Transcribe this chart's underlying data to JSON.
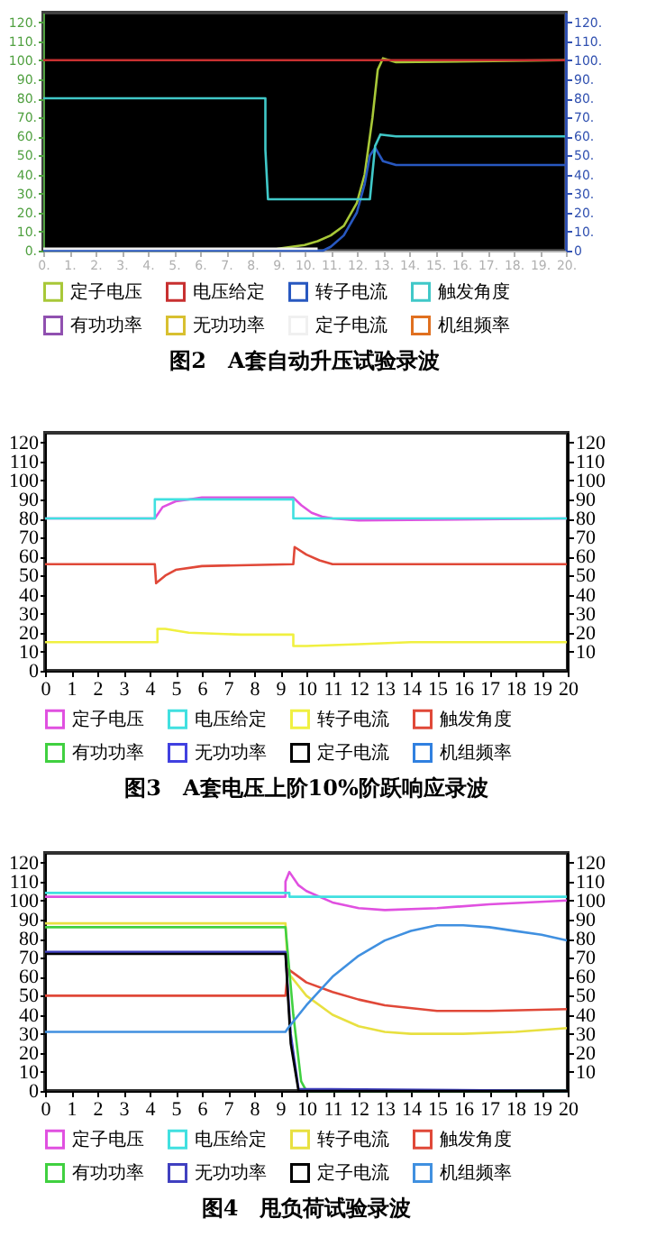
{
  "chart_data": [
    {
      "type": "line",
      "title": "图2　A套自动升压试验录波",
      "legend": "bottom",
      "marker": "none",
      "line_style": "solid",
      "grid": false,
      "xlim": [
        0,
        20
      ],
      "xticks": [
        {
          "value": 0,
          "label": "0."
        },
        {
          "value": 1,
          "label": "1."
        },
        {
          "value": 2,
          "label": "2."
        },
        {
          "value": 3,
          "label": "3."
        },
        {
          "value": 4,
          "label": "4."
        },
        {
          "value": 5,
          "label": "5."
        },
        {
          "value": 6,
          "label": "6."
        },
        {
          "value": 7,
          "label": "7."
        },
        {
          "value": 8,
          "label": "8."
        },
        {
          "value": 9,
          "label": "9."
        },
        {
          "value": 10,
          "label": "10."
        },
        {
          "value": 11,
          "label": "11."
        },
        {
          "value": 12,
          "label": "12."
        },
        {
          "value": 13,
          "label": "13."
        },
        {
          "value": 14,
          "label": "14."
        },
        {
          "value": 15,
          "label": "15."
        },
        {
          "value": 16,
          "label": "16."
        },
        {
          "value": 17,
          "label": "17."
        },
        {
          "value": 18,
          "label": "18."
        },
        {
          "value": 19,
          "label": "19."
        },
        {
          "value": 20,
          "label": "20."
        }
      ],
      "ylim": [
        0,
        125
      ],
      "yticks": [
        {
          "value": 0,
          "label": "0."
        },
        {
          "value": 10,
          "label": "10."
        },
        {
          "value": 20,
          "label": "20."
        },
        {
          "value": 30,
          "label": "30."
        },
        {
          "value": 40,
          "label": "40."
        },
        {
          "value": 50,
          "label": "50."
        },
        {
          "value": 60,
          "label": "60."
        },
        {
          "value": 70,
          "label": "70."
        },
        {
          "value": 80,
          "label": "80."
        },
        {
          "value": 90,
          "label": "90."
        },
        {
          "value": 100,
          "label": "100."
        },
        {
          "value": 110,
          "label": "110."
        },
        {
          "value": 120,
          "label": "120."
        }
      ],
      "y2lim": [
        0,
        125
      ],
      "y2ticks": [
        0,
        {
          "value": 10,
          "label": "10."
        },
        {
          "value": 20,
          "label": "20."
        },
        {
          "value": 30,
          "label": "30."
        },
        {
          "value": 40,
          "label": "40."
        },
        {
          "value": 50,
          "label": "50."
        },
        {
          "value": 60,
          "label": "60."
        },
        {
          "value": 70,
          "label": "70."
        },
        {
          "value": 80,
          "label": "80."
        },
        {
          "value": 90,
          "label": "90."
        },
        {
          "value": 100,
          "label": "100."
        },
        {
          "value": 110,
          "label": "110."
        },
        {
          "value": 120,
          "label": "120."
        }
      ],
      "series": [
        {
          "name": "定子电压",
          "color": "#a8c838",
          "x": [
            0,
            8.7,
            9,
            9.5,
            10,
            10.5,
            11,
            11.5,
            12,
            12.3,
            12.6,
            12.8,
            13,
            13.5,
            20
          ],
          "values": [
            0,
            0,
            1,
            2,
            3,
            5,
            8,
            13,
            25,
            40,
            70,
            95,
            101,
            99,
            100
          ]
        },
        {
          "name": "电压给定",
          "color": "#c83030",
          "x": [
            0,
            20
          ],
          "values": [
            100,
            100
          ]
        },
        {
          "name": "转子电流",
          "color": "#2858c0",
          "x": [
            0,
            10.7,
            11,
            11.5,
            12,
            12.3,
            12.5,
            12.7,
            13,
            13.5,
            20
          ],
          "values": [
            0,
            0,
            2,
            8,
            20,
            35,
            50,
            54,
            47,
            45,
            45
          ]
        },
        {
          "name": "触发角度",
          "color": "#40c8c8",
          "x": [
            0,
            8.5,
            8.5,
            8.6,
            12.5,
            12.7,
            12.9,
            13.5,
            20
          ],
          "values": [
            80,
            80,
            53,
            27,
            27,
            55,
            61,
            60,
            60
          ]
        },
        {
          "name": "有功功率",
          "color": "#9050b0"
        },
        {
          "name": "无功功率",
          "color": "#d8c030"
        },
        {
          "name": "定子电流",
          "color": "#f0f0f0",
          "x": [
            0,
            10.5
          ],
          "values": [
            1,
            1
          ]
        },
        {
          "name": "机组频率",
          "color": "#e07020"
        }
      ]
    },
    {
      "type": "line",
      "title": "图3　A套电压上阶10%阶跃响应录波",
      "legend": "bottom",
      "marker": "none",
      "line_style": "solid",
      "grid": false,
      "xlim": [
        0,
        20
      ],
      "xticks": [
        0,
        1,
        2,
        3,
        4,
        5,
        6,
        7,
        8,
        9,
        10,
        11,
        12,
        13,
        14,
        15,
        16,
        17,
        18,
        19,
        20
      ],
      "ylim": [
        0,
        125
      ],
      "yticks": [
        0,
        10,
        20,
        30,
        40,
        50,
        60,
        70,
        80,
        90,
        100,
        110,
        120
      ],
      "y2lim": [
        0,
        125
      ],
      "y2ticks": [
        10,
        20,
        30,
        40,
        50,
        60,
        70,
        80,
        90,
        100,
        110,
        120
      ],
      "series": [
        {
          "name": "定子电压",
          "color": "#e050e0",
          "x": [
            0,
            4.2,
            4.5,
            5,
            5.5,
            6,
            9.5,
            9.8,
            10.2,
            10.6,
            11,
            12,
            20
          ],
          "values": [
            80,
            80,
            86,
            89,
            90,
            91,
            91,
            87,
            83,
            81,
            80,
            79,
            80
          ]
        },
        {
          "name": "电压给定",
          "color": "#40e0e0",
          "x": [
            0,
            4.2,
            4.2,
            9.5,
            9.5,
            20
          ],
          "values": [
            80,
            80,
            90,
            90,
            80,
            80
          ]
        },
        {
          "name": "转子电流",
          "color": "#f0f040",
          "x": [
            0,
            4.3,
            4.3,
            4.6,
            5.5,
            7.5,
            9.5,
            9.5,
            10,
            12,
            14,
            20
          ],
          "values": [
            15,
            15,
            22,
            22,
            20,
            19,
            19,
            13,
            13,
            14,
            15,
            15
          ]
        },
        {
          "name": "触发角度",
          "color": "#e04838",
          "x": [
            0,
            4.2,
            4.25,
            4.6,
            5,
            6,
            9.5,
            9.55,
            10,
            10.5,
            11,
            20
          ],
          "values": [
            56,
            56,
            46,
            50,
            53,
            55,
            56,
            65,
            61,
            58,
            56,
            56
          ]
        },
        {
          "name": "有功功率",
          "color": "#40d040"
        },
        {
          "name": "无功功率",
          "color": "#4040e0"
        },
        {
          "name": "定子电流",
          "color": "#000000"
        },
        {
          "name": "机组频率",
          "color": "#3080e0"
        }
      ]
    },
    {
      "type": "line",
      "title": "图4　甩负荷试验录波",
      "legend": "bottom",
      "marker": "none",
      "line_style": "solid",
      "grid": false,
      "xlim": [
        0,
        20
      ],
      "xticks": [
        0,
        1,
        2,
        3,
        4,
        5,
        6,
        7,
        8,
        9,
        10,
        11,
        12,
        13,
        14,
        15,
        16,
        17,
        18,
        19,
        20
      ],
      "ylim": [
        0,
        125
      ],
      "yticks": [
        0,
        10,
        20,
        30,
        40,
        50,
        60,
        70,
        80,
        90,
        100,
        110,
        120
      ],
      "y2lim": [
        0,
        125
      ],
      "y2ticks": [
        10,
        20,
        30,
        40,
        50,
        60,
        70,
        80,
        90,
        100,
        110,
        120
      ],
      "series": [
        {
          "name": "定子电压",
          "color": "#e050e0",
          "x": [
            0,
            9.2,
            9.2,
            9.35,
            9.7,
            10,
            11,
            12,
            13,
            15,
            17,
            20
          ],
          "values": [
            102,
            102,
            110,
            115,
            108,
            105,
            99,
            96,
            95,
            96,
            98,
            100
          ]
        },
        {
          "name": "电压给定",
          "color": "#40e0e0",
          "x": [
            0,
            9.35,
            9.35,
            20
          ],
          "values": [
            104,
            104,
            102,
            102
          ]
        },
        {
          "name": "转子电流",
          "color": "#e8e040",
          "x": [
            0,
            9.2,
            9.3,
            10,
            11,
            12,
            13,
            14,
            16,
            18,
            20
          ],
          "values": [
            88,
            88,
            62,
            50,
            40,
            34,
            31,
            30,
            30,
            31,
            33
          ]
        },
        {
          "name": "触发角度",
          "color": "#e04838",
          "x": [
            0,
            9.2,
            9.3,
            10,
            11,
            12,
            13,
            15,
            17,
            20
          ],
          "values": [
            50,
            50,
            64,
            57,
            52,
            48,
            45,
            42,
            42,
            43
          ]
        },
        {
          "name": "有功功率",
          "color": "#40d040",
          "x": [
            0,
            9.2,
            9.5,
            9.8,
            10,
            20
          ],
          "values": [
            86,
            86,
            40,
            5,
            0,
            0
          ]
        },
        {
          "name": "无功功率",
          "color": "#4040c0",
          "x": [
            0,
            9.2,
            9.4,
            9.7,
            20
          ],
          "values": [
            73,
            73,
            30,
            1,
            0
          ]
        },
        {
          "name": "定子电流",
          "color": "#000000",
          "x": [
            0,
            9.2,
            9.4,
            9.7,
            20
          ],
          "values": [
            72,
            72,
            25,
            0,
            0
          ]
        },
        {
          "name": "机组频率",
          "color": "#4090e0",
          "x": [
            0,
            9.2,
            9.3,
            10,
            11,
            12,
            13,
            14,
            15,
            16,
            17,
            18,
            19,
            20
          ],
          "values": [
            31,
            31,
            33,
            45,
            60,
            71,
            79,
            84,
            87,
            87,
            86,
            84,
            82,
            79
          ]
        }
      ]
    }
  ]
}
